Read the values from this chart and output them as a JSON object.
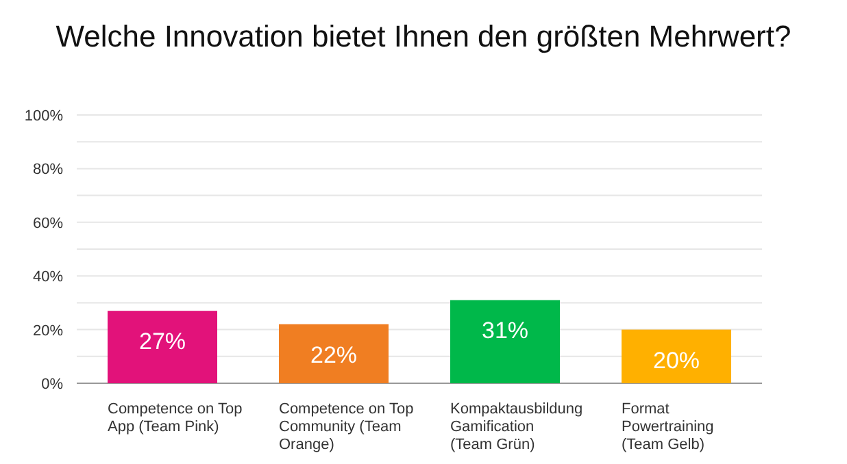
{
  "chart_data": {
    "type": "bar",
    "title": "Welche Innovation bietet Ihnen den größten Mehrwert?",
    "categories": [
      "Competence on Top App (Team Pink)",
      "Competence on Top Community (Team Orange)",
      "Kompaktausbildung Gamification (Team Grün)",
      "Format Powertraining (Team Gelb)"
    ],
    "values": [
      27,
      22,
      31,
      20
    ],
    "value_labels": [
      "27%",
      "22%",
      "31%",
      "20%"
    ],
    "colors": [
      "#e2127a",
      "#f07e22",
      "#00b84a",
      "#ffb000"
    ],
    "ylim": [
      0,
      100
    ],
    "yticks": [
      {
        "value": 0,
        "label": "0%"
      },
      {
        "value": 10,
        "label": null
      },
      {
        "value": 20,
        "label": "20%"
      },
      {
        "value": 30,
        "label": null
      },
      {
        "value": 40,
        "label": "40%"
      },
      {
        "value": 50,
        "label": null
      },
      {
        "value": 60,
        "label": "60%"
      },
      {
        "value": 70,
        "label": null
      },
      {
        "value": 80,
        "label": "80%"
      },
      {
        "value": 90,
        "label": null
      },
      {
        "value": 100,
        "label": "100%"
      }
    ],
    "grid": "y"
  }
}
